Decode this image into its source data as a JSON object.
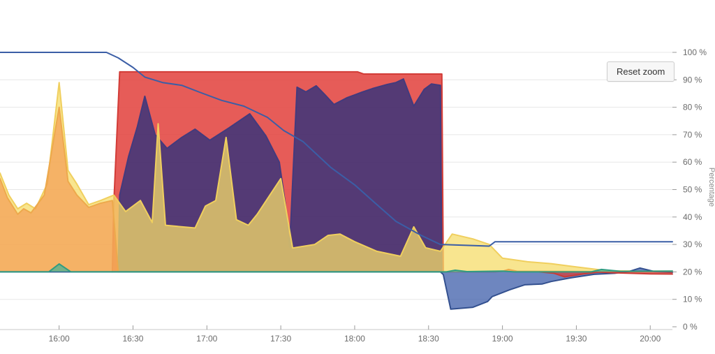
{
  "toolbar": {
    "reset_zoom_label": "Reset zoom"
  },
  "chart_data": {
    "type": "area",
    "title": "",
    "xlabel": "",
    "ylabel": "Percentage",
    "legend": "none",
    "grid": "horizontal",
    "ylim": [
      0,
      100
    ],
    "xlim_hours": [
      15.6,
      20.15
    ],
    "baseline_threshold_pct": 20,
    "y_ticks": [
      {
        "pct": 0,
        "label": "0 %"
      },
      {
        "pct": 10,
        "label": "10 %"
      },
      {
        "pct": 20,
        "label": "20 %"
      },
      {
        "pct": 30,
        "label": "30 %"
      },
      {
        "pct": 40,
        "label": "40 %"
      },
      {
        "pct": 50,
        "label": "50 %"
      },
      {
        "pct": 60,
        "label": "60 %"
      },
      {
        "pct": 70,
        "label": "70 %"
      },
      {
        "pct": 80,
        "label": "80 %"
      },
      {
        "pct": 90,
        "label": "90 %"
      },
      {
        "pct": 100,
        "label": "100 %"
      }
    ],
    "x_ticks": [
      {
        "hour": 16.0,
        "label": "16:00"
      },
      {
        "hour": 16.5,
        "label": "16:30"
      },
      {
        "hour": 17.0,
        "label": "17:00"
      },
      {
        "hour": 17.5,
        "label": "17:30"
      },
      {
        "hour": 18.0,
        "label": "18:00"
      },
      {
        "hour": 18.5,
        "label": "18:30"
      },
      {
        "hour": 19.0,
        "label": "19:00"
      },
      {
        "hour": 19.5,
        "label": "19:30"
      },
      {
        "hour": 20.0,
        "label": "20:00"
      }
    ],
    "series": [
      {
        "name": "red-band-area",
        "type": "area",
        "fill": "rgba(226,64,59,0.85)",
        "stroke": "#d23c37",
        "stroke_width": 2,
        "points": [
          [
            16.36,
            20
          ],
          [
            16.37,
            45
          ],
          [
            16.41,
            92.9
          ],
          [
            17.0,
            92.9
          ],
          [
            17.6,
            92.9
          ],
          [
            18.02,
            92.9
          ],
          [
            18.06,
            92.1
          ],
          [
            18.59,
            92.1
          ],
          [
            18.6,
            20
          ]
        ]
      },
      {
        "name": "purple-area",
        "type": "area",
        "fill": "rgba(58,52,122,0.85)",
        "stroke": "#433a7d",
        "stroke_width": 2,
        "points": [
          [
            16.4,
            20
          ],
          [
            16.41,
            48
          ],
          [
            16.47,
            62
          ],
          [
            16.53,
            73
          ],
          [
            16.58,
            84
          ],
          [
            16.65,
            70
          ],
          [
            16.73,
            65
          ],
          [
            16.83,
            69
          ],
          [
            16.92,
            72
          ],
          [
            17.02,
            68
          ],
          [
            17.15,
            72.5
          ],
          [
            17.29,
            77.6
          ],
          [
            17.4,
            69.5
          ],
          [
            17.49,
            60
          ],
          [
            17.53,
            45
          ],
          [
            17.56,
            29
          ],
          [
            17.61,
            87.3
          ],
          [
            17.67,
            85.6
          ],
          [
            17.74,
            87.8
          ],
          [
            17.8,
            84.5
          ],
          [
            17.86,
            81
          ],
          [
            17.95,
            83.5
          ],
          [
            18.05,
            85.5
          ],
          [
            18.12,
            86.8
          ],
          [
            18.22,
            88.3
          ],
          [
            18.28,
            89
          ],
          [
            18.33,
            90.3
          ],
          [
            18.4,
            80.4
          ],
          [
            18.47,
            86.5
          ],
          [
            18.52,
            88.5
          ],
          [
            18.58,
            88
          ],
          [
            18.59,
            20
          ]
        ]
      },
      {
        "name": "pale-yellow-area",
        "type": "area",
        "fill": "rgba(246,220,105,0.75)",
        "stroke": "#f0cf5e",
        "stroke_width": 2,
        "points": [
          [
            15.6,
            56
          ],
          [
            15.66,
            48
          ],
          [
            15.72,
            43
          ],
          [
            15.78,
            45
          ],
          [
            15.84,
            43
          ],
          [
            15.92,
            52
          ],
          [
            16.0,
            89
          ],
          [
            16.06,
            57
          ],
          [
            16.12,
            52
          ],
          [
            16.2,
            44.5
          ],
          [
            16.28,
            46
          ],
          [
            16.37,
            48
          ],
          [
            16.45,
            42
          ],
          [
            16.55,
            46
          ],
          [
            16.63,
            38
          ],
          [
            16.67,
            74
          ],
          [
            16.72,
            37
          ],
          [
            16.82,
            36.5
          ],
          [
            16.92,
            36
          ],
          [
            16.99,
            44
          ],
          [
            17.06,
            46
          ],
          [
            17.13,
            69
          ],
          [
            17.2,
            39
          ],
          [
            17.28,
            37
          ],
          [
            17.34,
            41
          ],
          [
            17.5,
            54
          ],
          [
            17.58,
            28.7
          ],
          [
            17.73,
            30
          ],
          [
            17.82,
            33.3
          ],
          [
            17.9,
            33.8
          ],
          [
            18.0,
            31
          ],
          [
            18.15,
            27.5
          ],
          [
            18.31,
            25.7
          ],
          [
            18.4,
            36.4
          ],
          [
            18.48,
            28.8
          ],
          [
            18.58,
            27.5
          ],
          [
            18.66,
            33.8
          ],
          [
            18.8,
            32
          ],
          [
            18.91,
            30
          ],
          [
            19.0,
            25
          ],
          [
            19.17,
            23.7
          ],
          [
            19.33,
            23
          ],
          [
            19.47,
            22
          ],
          [
            19.71,
            20.4
          ],
          [
            19.95,
            20.3
          ],
          [
            20.15,
            20.3
          ]
        ]
      },
      {
        "name": "orange-area",
        "type": "area",
        "fill": "rgba(243,144,75,0.6)",
        "stroke": "#eda94c",
        "stroke_width": 2,
        "points": [
          [
            15.6,
            54
          ],
          [
            15.65,
            47
          ],
          [
            15.72,
            41
          ],
          [
            15.76,
            43
          ],
          [
            15.81,
            41.5
          ],
          [
            15.9,
            48
          ],
          [
            16.0,
            80
          ],
          [
            16.06,
            53
          ],
          [
            16.12,
            48
          ],
          [
            16.2,
            43.5
          ],
          [
            16.28,
            45
          ],
          [
            16.36,
            46
          ],
          [
            16.4,
            20
          ],
          [
            18.95,
            20
          ],
          [
            19.0,
            20.2
          ],
          [
            19.04,
            20.9
          ],
          [
            19.1,
            20.2
          ],
          [
            20.15,
            20
          ]
        ]
      },
      {
        "name": "navy-dip-area",
        "type": "area",
        "fill": "rgba(62,94,170,0.75)",
        "stroke": "#33508f",
        "stroke_width": 2,
        "points": [
          [
            15.6,
            20
          ],
          [
            18.58,
            20
          ],
          [
            18.6,
            19
          ],
          [
            18.65,
            6.4
          ],
          [
            18.8,
            7.1
          ],
          [
            18.9,
            9.2
          ],
          [
            18.93,
            11
          ],
          [
            19.05,
            13.5
          ],
          [
            19.15,
            15.3
          ],
          [
            19.27,
            15.6
          ],
          [
            19.33,
            16.5
          ],
          [
            19.46,
            17.8
          ],
          [
            19.62,
            19.1
          ],
          [
            19.76,
            19.5
          ],
          [
            19.86,
            20.2
          ],
          [
            19.93,
            21.4
          ],
          [
            20.03,
            20.1
          ],
          [
            20.15,
            19.8
          ]
        ]
      },
      {
        "name": "red-small-area",
        "type": "area",
        "fill": "rgba(220,58,52,0.7)",
        "stroke": "#c83b35",
        "stroke_width": 2,
        "points": [
          [
            19.25,
            20
          ],
          [
            19.35,
            19.5
          ],
          [
            19.42,
            18.2
          ],
          [
            19.55,
            19.3
          ],
          [
            19.65,
            19.9
          ],
          [
            19.8,
            19.6
          ],
          [
            20.0,
            19.3
          ],
          [
            20.15,
            19.2
          ]
        ]
      },
      {
        "name": "teal-area",
        "type": "area",
        "fill": "rgba(64,178,150,0.7)",
        "stroke": "#2f9c82",
        "stroke_width": 2,
        "points": [
          [
            15.6,
            20
          ],
          [
            15.93,
            20
          ],
          [
            16.0,
            22.9
          ],
          [
            16.08,
            20
          ],
          [
            18.62,
            20
          ],
          [
            18.68,
            20.6
          ],
          [
            18.76,
            20.1
          ],
          [
            19.0,
            20.3
          ],
          [
            19.08,
            20
          ],
          [
            19.6,
            20
          ],
          [
            19.67,
            20.9
          ],
          [
            19.8,
            20.2
          ],
          [
            20.15,
            20.3
          ]
        ]
      },
      {
        "name": "blue-line",
        "type": "line",
        "fill": "none",
        "stroke": "#3b5ea6",
        "stroke_width": 2,
        "points": [
          [
            15.6,
            100
          ],
          [
            16.32,
            100
          ],
          [
            16.4,
            98
          ],
          [
            16.5,
            94.5
          ],
          [
            16.58,
            91
          ],
          [
            16.7,
            89
          ],
          [
            16.83,
            88
          ],
          [
            16.95,
            85.5
          ],
          [
            17.1,
            82.5
          ],
          [
            17.25,
            80.4
          ],
          [
            17.41,
            76.3
          ],
          [
            17.52,
            71.5
          ],
          [
            17.65,
            67.5
          ],
          [
            17.84,
            58
          ],
          [
            18.0,
            51.7
          ],
          [
            18.14,
            45
          ],
          [
            18.28,
            38.4
          ],
          [
            18.45,
            33.3
          ],
          [
            18.58,
            30
          ],
          [
            18.91,
            29.4
          ],
          [
            18.95,
            31
          ],
          [
            20.15,
            31
          ]
        ]
      }
    ]
  }
}
